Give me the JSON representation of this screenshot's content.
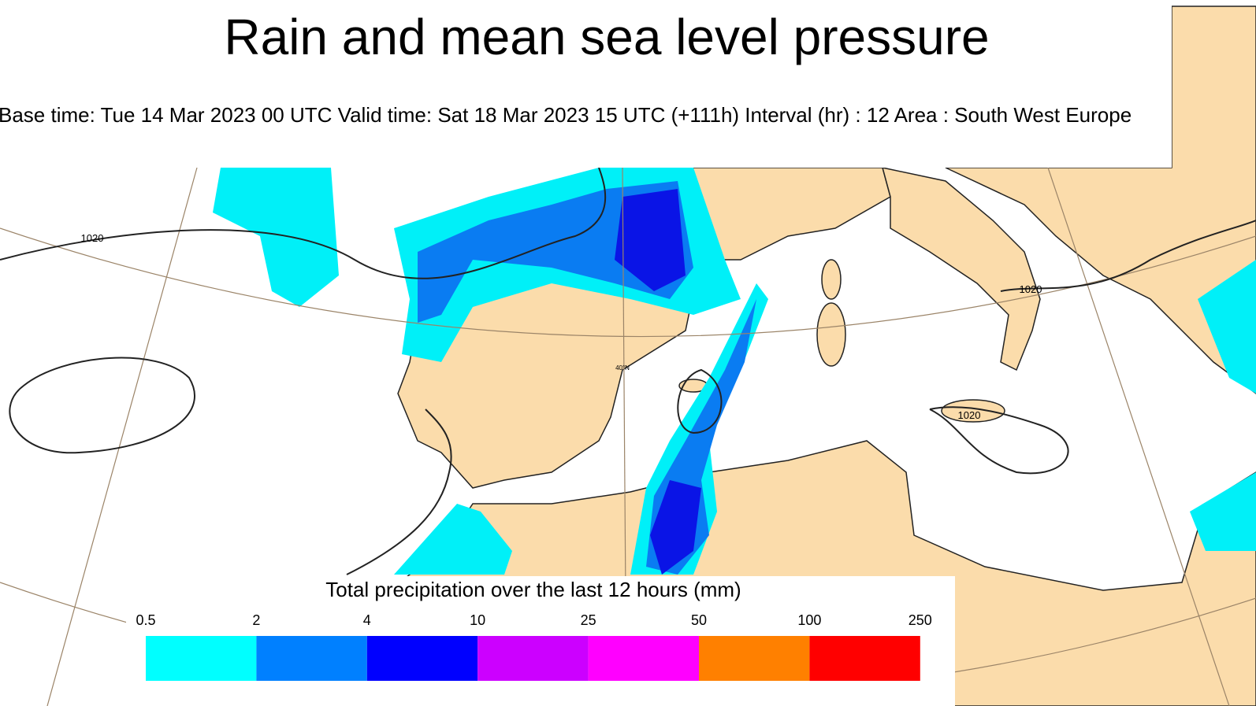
{
  "header": {
    "title": "Rain and mean sea level pressure",
    "subtitle": "Base time: Tue 14 Mar 2023 00 UTC Valid time: Sat 18 Mar 2023 15 UTC (+111h) Interval (hr) : 12 Area : South West Europe"
  },
  "map": {
    "isobar_labels": [
      "1020",
      "1020",
      "1020"
    ],
    "lat_label": "40°N"
  },
  "legend": {
    "title": "Total precipitation over the last 12 hours (mm)",
    "bounds": [
      0.5,
      2,
      4,
      10,
      25,
      50,
      100,
      250
    ],
    "colors": [
      "#00ffff",
      "#0080ff",
      "#0000ff",
      "#cc00ff",
      "#ff00ff",
      "#ff8000",
      "#ff0000"
    ]
  }
}
